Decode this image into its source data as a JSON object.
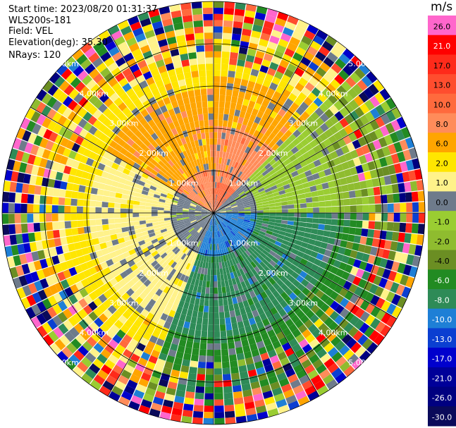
{
  "header": {
    "start_time": "Start time: 2023/08/20 01:31:37",
    "instrument": "WLS200s-181",
    "field": "Field: VEL",
    "elevation": "Elevation(deg): 35.30",
    "nrays": "NRays: 120"
  },
  "chart_data": {
    "type": "ppi-radar-scan",
    "field": "VEL",
    "units": "m/s",
    "n_rays": 120,
    "ring_labels": [
      "1.00km",
      "2.00km",
      "3.00km",
      "4.00km",
      "5.00km"
    ],
    "ring_ranges_km": [
      1,
      2,
      3,
      4,
      5
    ],
    "max_range_km": 5,
    "colorbar": {
      "title": "m/s",
      "tick_labels": [
        "26.0",
        "21.0",
        "17.0",
        "13.0",
        "10.0",
        "8.0",
        "6.0",
        "2.0",
        "1.0",
        "0.0",
        "-1.0",
        "-2.0",
        "-4.0",
        "-6.0",
        "-8.0",
        "-10.0",
        "-13.0",
        "-17.0",
        "-21.0",
        "-26.0",
        "-30.0"
      ],
      "bins": [
        {
          "value": "26.0",
          "color": "#ff66cc"
        },
        {
          "value": "21.0",
          "color": "#ff0000"
        },
        {
          "value": "17.0",
          "color": "#ff2a1a"
        },
        {
          "value": "13.0",
          "color": "#ff4d2e"
        },
        {
          "value": "10.0",
          "color": "#ff6a3d"
        },
        {
          "value": "8.0",
          "color": "#ff8c5a"
        },
        {
          "value": "6.0",
          "color": "#ffa500"
        },
        {
          "value": "2.0",
          "color": "#ffe600"
        },
        {
          "value": "1.0",
          "color": "#fff28a"
        },
        {
          "value": "0.0",
          "color": "#6e7b8b"
        },
        {
          "value": "-1.0",
          "color": "#9acd32"
        },
        {
          "value": "-2.0",
          "color": "#8fbc2f"
        },
        {
          "value": "-4.0",
          "color": "#6b8e23"
        },
        {
          "value": "-6.0",
          "color": "#228b22"
        },
        {
          "value": "-8.0",
          "color": "#2e8b57"
        },
        {
          "value": "-10.0",
          "color": "#1e7fd6"
        },
        {
          "value": "-13.0",
          "color": "#0b3fd1"
        },
        {
          "value": "-17.0",
          "color": "#0000cd"
        },
        {
          "value": "-21.0",
          "color": "#000099"
        },
        {
          "value": "-26.0",
          "color": "#000080"
        },
        {
          "value": "-30.0",
          "color": "#0a0a5a"
        }
      ]
    },
    "sector_pattern": [
      {
        "azimuth_from_deg": 300,
        "azimuth_to_deg": 360,
        "near_range_value": "8.0",
        "outer_value": "2.0"
      },
      {
        "azimuth_from_deg": 0,
        "azimuth_to_deg": 45,
        "near_range_value": "10.0",
        "outer_value": "2.0"
      },
      {
        "azimuth_from_deg": 45,
        "azimuth_to_deg": 90,
        "near_range_value": "0.0",
        "outer_value": "-2.0"
      },
      {
        "azimuth_from_deg": 90,
        "azimuth_to_deg": 200,
        "near_range_value": "-10.0",
        "outer_value": "-6.0"
      },
      {
        "azimuth_from_deg": 200,
        "azimuth_to_deg": 300,
        "near_range_value": "0.0",
        "outer_value": "2.0"
      }
    ]
  }
}
